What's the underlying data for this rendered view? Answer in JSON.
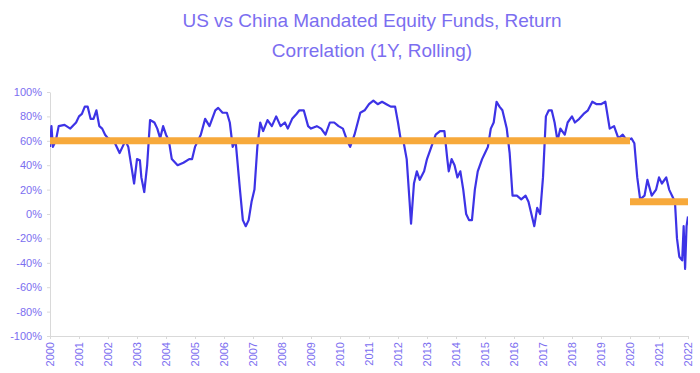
{
  "chart_data": {
    "type": "line",
    "title": [
      "US vs China Mandated Equity Funds, Return",
      "Correlation (1Y, Rolling)"
    ],
    "x": [
      2000.0,
      2000.05,
      2000.1,
      2000.2,
      2000.3,
      2000.5,
      2000.7,
      2000.9,
      2001.0,
      2001.1,
      2001.2,
      2001.3,
      2001.4,
      2001.5,
      2001.6,
      2001.7,
      2001.8,
      2001.9,
      2002.0,
      2002.2,
      2002.4,
      2002.5,
      2002.6,
      2002.7,
      2002.8,
      2002.9,
      2003.0,
      2003.1,
      2003.15,
      2003.25,
      2003.35,
      2003.45,
      2003.6,
      2003.7,
      2003.8,
      2003.9,
      2004.0,
      2004.1,
      2004.2,
      2004.4,
      2004.6,
      2004.8,
      2004.9,
      2005.0,
      2005.2,
      2005.35,
      2005.5,
      2005.7,
      2005.8,
      2005.95,
      2006.1,
      2006.2,
      2006.3,
      2006.4,
      2006.55,
      2006.65,
      2006.75,
      2006.85,
      2006.95,
      2007.05,
      2007.15,
      2007.25,
      2007.35,
      2007.5,
      2007.65,
      2007.8,
      2007.95,
      2008.1,
      2008.2,
      2008.35,
      2008.5,
      2008.6,
      2008.75,
      2008.9,
      2009.0,
      2009.2,
      2009.35,
      2009.5,
      2009.65,
      2009.8,
      2009.95,
      2010.1,
      2010.25,
      2010.35,
      2010.5,
      2010.7,
      2010.85,
      2011.0,
      2011.15,
      2011.3,
      2011.45,
      2011.6,
      2011.75,
      2011.9,
      2012.0,
      2012.1,
      2012.2,
      2012.3,
      2012.4,
      2012.45,
      2012.55,
      2012.65,
      2012.75,
      2012.9,
      2013.0,
      2013.15,
      2013.3,
      2013.45,
      2013.6,
      2013.7,
      2013.75,
      2013.85,
      2013.95,
      2014.05,
      2014.15,
      2014.25,
      2014.35,
      2014.45,
      2014.55,
      2014.65,
      2014.75,
      2014.9,
      2015.0,
      2015.1,
      2015.2,
      2015.3,
      2015.4,
      2015.5,
      2015.6,
      2015.75,
      2015.85,
      2015.95,
      2016.1,
      2016.25,
      2016.4,
      2016.5,
      2016.6,
      2016.7,
      2016.8,
      2016.9,
      2017.0,
      2017.1,
      2017.2,
      2017.3,
      2017.4,
      2017.5,
      2017.6,
      2017.75,
      2017.85,
      2018.0,
      2018.1,
      2018.25,
      2018.4,
      2018.55,
      2018.7,
      2018.85,
      2019.0,
      2019.15,
      2019.3,
      2019.45,
      2019.6,
      2019.75,
      2019.9,
      2020.05,
      2020.15,
      2020.25,
      2020.35,
      2020.5,
      2020.6,
      2020.75,
      2020.9,
      2021.0,
      2021.1,
      2021.25,
      2021.35,
      2021.45,
      2021.55,
      2021.62,
      2021.7,
      2021.8,
      2021.85,
      2021.9,
      2021.95,
      2022.0
    ],
    "series": [
      {
        "color": "#3d33e6",
        "values": [
          55,
          72,
          55,
          60,
          72,
          73,
          70,
          75,
          80,
          82,
          88,
          88,
          78,
          78,
          85,
          72,
          70,
          65,
          62,
          60,
          50,
          55,
          60,
          55,
          40,
          25,
          45,
          44,
          30,
          18,
          40,
          77,
          75,
          70,
          62,
          72,
          65,
          60,
          45,
          40,
          42,
          45,
          45,
          55,
          65,
          78,
          72,
          85,
          87,
          83,
          83,
          75,
          55,
          60,
          20,
          -5,
          -10,
          -5,
          10,
          20,
          55,
          75,
          68,
          77,
          72,
          80,
          72,
          75,
          70,
          78,
          82,
          85,
          85,
          72,
          70,
          72,
          70,
          65,
          75,
          75,
          72,
          70,
          60,
          55,
          65,
          83,
          85,
          90,
          93,
          90,
          92,
          90,
          88,
          88,
          75,
          60,
          58,
          45,
          10,
          -8,
          25,
          35,
          28,
          35,
          45,
          55,
          65,
          68,
          68,
          45,
          35,
          45,
          40,
          30,
          35,
          20,
          0,
          -5,
          -5,
          20,
          35,
          45,
          50,
          55,
          70,
          75,
          92,
          88,
          85,
          70,
          50,
          15,
          15,
          12,
          15,
          10,
          0,
          -10,
          5,
          0,
          30,
          80,
          85,
          85,
          75,
          60,
          70,
          65,
          75,
          80,
          75,
          78,
          82,
          85,
          92,
          90,
          90,
          92,
          70,
          72,
          62,
          65,
          60,
          62,
          58,
          30,
          12,
          15,
          28,
          15,
          20,
          30,
          25,
          30,
          20,
          15,
          10,
          -20,
          -35,
          -38,
          -10,
          -45,
          -10,
          -2
        ]
      }
    ],
    "reference_lines": [
      {
        "x": [
          2000,
          2020
        ],
        "value": 60,
        "color": "#f7a93b"
      },
      {
        "x": [
          2020,
          2022
        ],
        "value": 10,
        "color": "#f7a93b"
      }
    ],
    "xlim": [
      2000,
      2022
    ],
    "xticks": [
      2000,
      2001,
      2002,
      2003,
      2004,
      2005,
      2006,
      2007,
      2008,
      2009,
      2010,
      2011,
      2012,
      2013,
      2014,
      2015,
      2016,
      2017,
      2018,
      2019,
      2020,
      2021,
      2022
    ],
    "ylim": [
      -100,
      100
    ],
    "yticks": [
      {
        "value": -100,
        "label": "-100%"
      },
      {
        "value": -80,
        "label": "-80%"
      },
      {
        "value": -60,
        "label": "-60%"
      },
      {
        "value": -40,
        "label": "-40%"
      },
      {
        "value": -20,
        "label": "-20%"
      },
      {
        "value": 0,
        "label": "0%"
      },
      {
        "value": 20,
        "label": "20%"
      },
      {
        "value": 40,
        "label": "40%"
      },
      {
        "value": 60,
        "label": "60%"
      },
      {
        "value": 80,
        "label": "80%"
      },
      {
        "value": 100,
        "label": "100%"
      }
    ],
    "grid": false
  }
}
